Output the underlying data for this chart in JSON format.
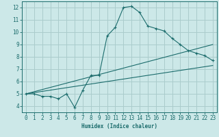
{
  "xlabel": "Humidex (Indice chaleur)",
  "ylabel": "",
  "bg_color": "#cce8e8",
  "grid_color": "#aacccc",
  "line_color": "#1a6b6b",
  "xlim": [
    -0.5,
    23.5
  ],
  "ylim": [
    3.5,
    12.5
  ],
  "xticks": [
    0,
    1,
    2,
    3,
    4,
    5,
    6,
    7,
    8,
    9,
    10,
    11,
    12,
    13,
    14,
    15,
    16,
    17,
    18,
    19,
    20,
    21,
    22,
    23
  ],
  "yticks": [
    4,
    5,
    6,
    7,
    8,
    9,
    10,
    11,
    12
  ],
  "main_x": [
    0,
    1,
    2,
    3,
    4,
    5,
    6,
    7,
    8,
    9,
    10,
    11,
    12,
    13,
    14,
    15,
    16,
    17,
    18,
    19,
    20,
    21,
    22,
    23
  ],
  "main_y": [
    5.0,
    5.0,
    4.8,
    4.8,
    4.6,
    5.0,
    3.9,
    5.3,
    6.5,
    6.5,
    9.7,
    10.4,
    12.0,
    12.1,
    11.6,
    10.5,
    10.3,
    10.1,
    9.5,
    9.0,
    8.5,
    8.3,
    8.1,
    7.7
  ],
  "line2_x": [
    0,
    23
  ],
  "line2_y": [
    5.0,
    9.0
  ],
  "line3_x": [
    0,
    23
  ],
  "line3_y": [
    5.0,
    7.3
  ],
  "xlabel_fontsize": 5.5,
  "tick_fontsize": 5.5
}
